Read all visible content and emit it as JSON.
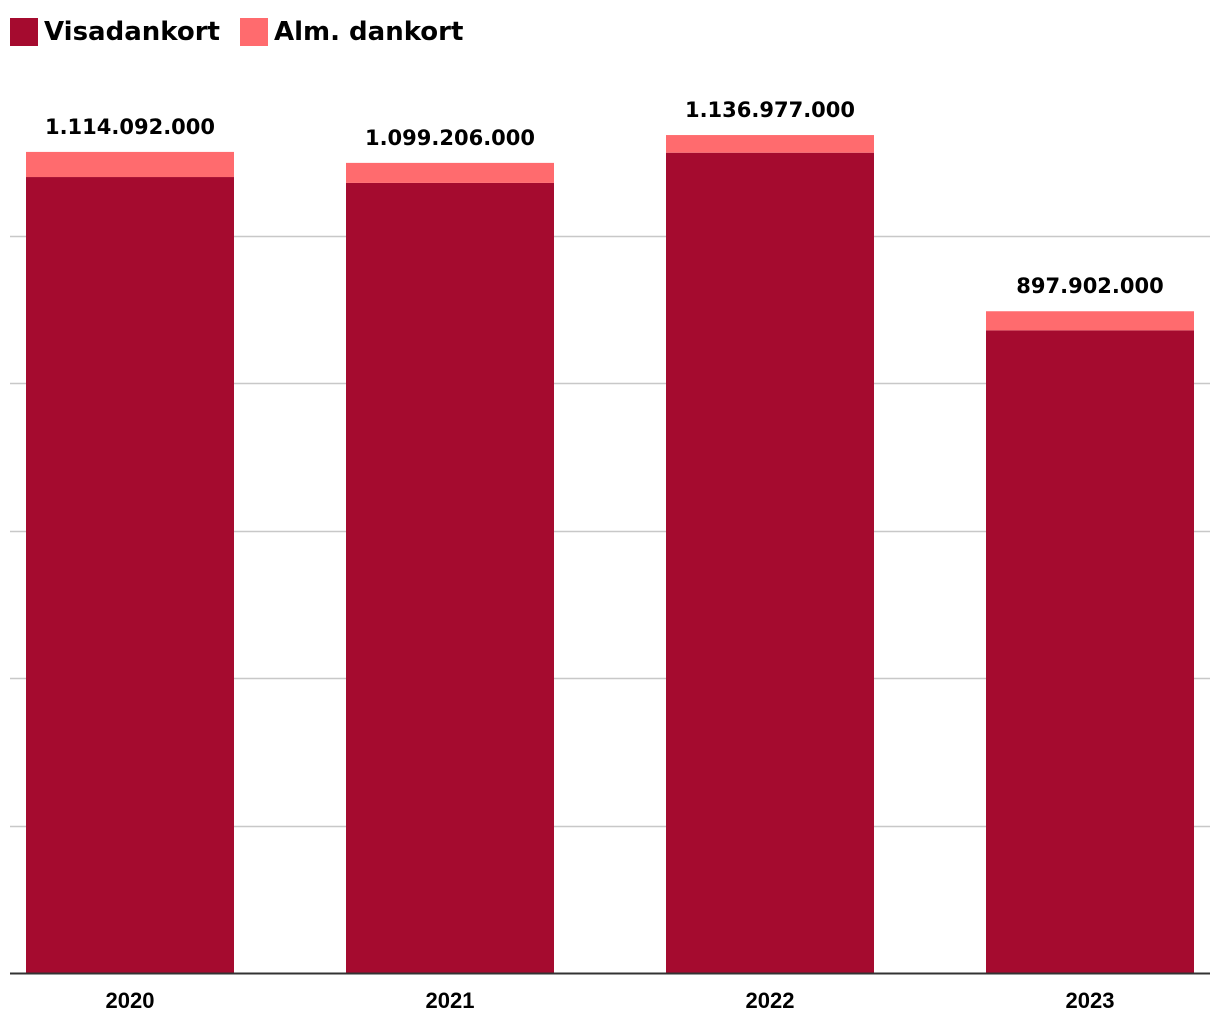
{
  "chart_data": {
    "type": "bar",
    "stacked": true,
    "categories": [
      "2020",
      "2021",
      "2022",
      "2023"
    ],
    "series": [
      {
        "name": "Visadankort",
        "values": [
          1080000000,
          1072000000,
          1113000000,
          872000000
        ]
      },
      {
        "name": "Alm. dankort",
        "values": [
          34092000,
          27206000,
          23977000,
          25902000
        ]
      }
    ],
    "totals": [
      1114092000,
      1099206000,
      1136977000,
      897902000
    ],
    "total_labels": [
      "1.114.092.000",
      "1.099.206.000",
      "1.136.977.000",
      "897.902.000"
    ],
    "title": "",
    "xlabel": "",
    "ylabel": "",
    "ylim": [
      0,
      1250000000
    ],
    "y_gridlines": [
      200000000,
      400000000,
      600000000,
      800000000,
      1000000000
    ],
    "y_tick_labels_shown": false,
    "grid": true,
    "legend": "top-left",
    "colors": {
      "Visadankort": "#a50b2f",
      "Alm. dankort": "#ff6b6e",
      "grid": "#c8c8c8",
      "axis": "#333333"
    }
  }
}
